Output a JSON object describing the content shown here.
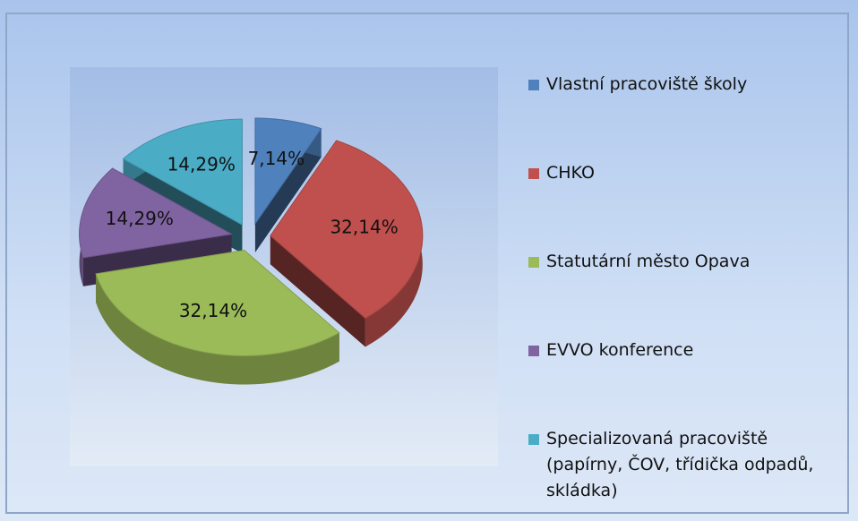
{
  "chart_data": {
    "type": "pie",
    "categories": [
      "Vlastní pracoviště školy",
      "CHKO",
      "Statutární město Opava",
      "EVVO konference",
      "Specializovaná pracoviště (papírny, ČOV, třídička odpadů, skládka)"
    ],
    "values": [
      7.14,
      32.14,
      32.14,
      14.29,
      14.29
    ],
    "value_labels": [
      "7,14%",
      "32,14%",
      "32,14%",
      "14,29%",
      "14,29%"
    ],
    "colors": [
      "#4f81bd",
      "#c0504d",
      "#9bbb59",
      "#8064a2",
      "#4bacc6"
    ],
    "legend": "right"
  }
}
